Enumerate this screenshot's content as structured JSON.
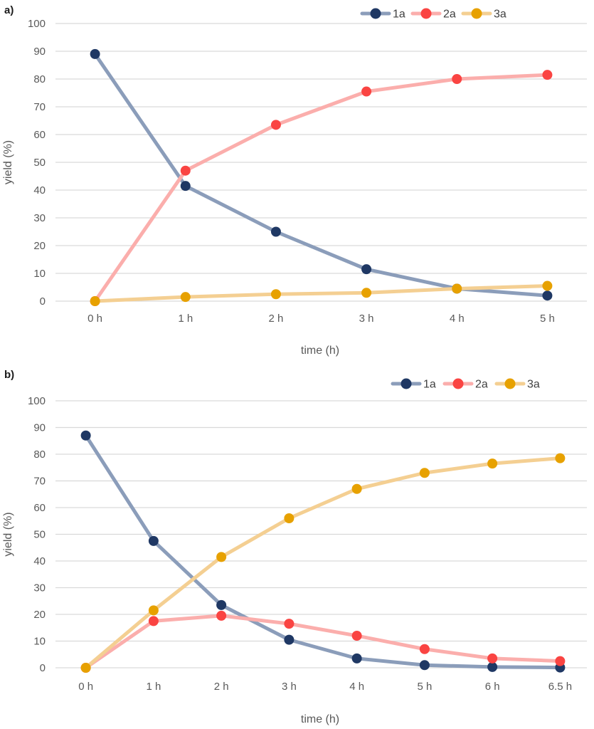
{
  "figure": {
    "description_colors": {
      "gridline": "#d9d9d9",
      "axis_text": "#595959",
      "legend_text": "#404040"
    }
  },
  "chart_data": [
    {
      "id": "a",
      "panel_label": "a)",
      "type": "line",
      "title": "",
      "xlabel": "time (h)",
      "ylabel": "yield (%)",
      "ylim": [
        0,
        100
      ],
      "ytick_step": 10,
      "grid": true,
      "legend_position": "top-right",
      "categories": [
        "0 h",
        "1 h",
        "2 h",
        "3 h",
        "4 h",
        "5 h"
      ],
      "series": [
        {
          "name": "1a",
          "marker_color": "#1f3864",
          "line_color": "#8b9dba",
          "values": [
            89,
            41.5,
            25,
            11.5,
            4.5,
            2
          ]
        },
        {
          "name": "2a",
          "marker_color": "#fa4442",
          "line_color": "#fbaeac",
          "values": [
            0,
            47,
            63.5,
            75.5,
            80,
            81.5
          ]
        },
        {
          "name": "3a",
          "marker_color": "#e7a100",
          "line_color": "#f4cf92",
          "values": [
            0,
            1.5,
            2.5,
            3,
            4.5,
            5.5
          ]
        }
      ]
    },
    {
      "id": "b",
      "panel_label": "b)",
      "type": "line",
      "title": "",
      "xlabel": "time (h)",
      "ylabel": "yield (%)",
      "ylim": [
        0,
        100
      ],
      "ytick_step": 10,
      "grid": true,
      "legend_position": "top-right",
      "categories": [
        "0 h",
        "1 h",
        "2 h",
        "3 h",
        "4 h",
        "5 h",
        "6 h",
        "6.5 h"
      ],
      "series": [
        {
          "name": "1a",
          "marker_color": "#1f3864",
          "line_color": "#8b9dba",
          "values": [
            87,
            47.5,
            23.5,
            10.5,
            3.5,
            1,
            0.3,
            0.1
          ]
        },
        {
          "name": "2a",
          "marker_color": "#fa4442",
          "line_color": "#fbaeac",
          "values": [
            0,
            17.5,
            19.5,
            16.5,
            12,
            7,
            3.5,
            2.5
          ]
        },
        {
          "name": "3a",
          "marker_color": "#e7a100",
          "line_color": "#f4cf92",
          "values": [
            0,
            21.5,
            41.5,
            56,
            67,
            73,
            76.5,
            78.5
          ]
        }
      ]
    }
  ]
}
